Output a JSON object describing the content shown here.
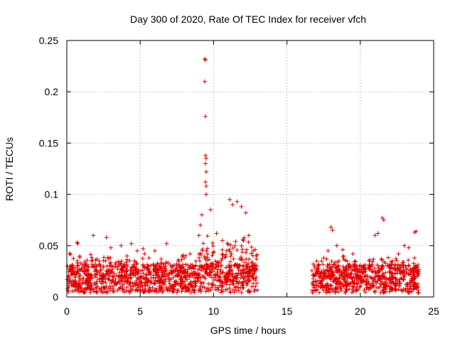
{
  "chart_data": {
    "type": "scatter",
    "title": "Day 300 of 2020, Rate Of TEC Index for receiver vfch",
    "xlabel": "GPS time / hours",
    "ylabel": "ROTI / TECUs",
    "xlim": [
      0,
      25
    ],
    "ylim": [
      0,
      0.25
    ],
    "xticks": [
      0,
      5,
      10,
      15,
      20,
      25
    ],
    "yticks": [
      0,
      0.05,
      0.1,
      0.15,
      0.2,
      0.25
    ],
    "xtick_labels": [
      "0",
      "5",
      "10",
      "15",
      "20",
      "25"
    ],
    "ytick_labels": [
      "0",
      "0.05",
      "0.1",
      "0.15",
      "0.2",
      "0.25"
    ],
    "grid": true,
    "marker": "+",
    "color": "#e00000",
    "series": [
      {
        "name": "ROTI",
        "points": [
          [
            0.2,
            0.03
          ],
          [
            0.5,
            0.022
          ],
          [
            0.7,
            0.053
          ],
          [
            0.75,
            0.052
          ],
          [
            1.0,
            0.028
          ],
          [
            1.4,
            0.018
          ],
          [
            1.8,
            0.06
          ],
          [
            2.2,
            0.035
          ],
          [
            2.7,
            0.058
          ],
          [
            3.0,
            0.048
          ],
          [
            3.3,
            0.03
          ],
          [
            3.7,
            0.05
          ],
          [
            4.1,
            0.04
          ],
          [
            4.4,
            0.052
          ],
          [
            4.8,
            0.045
          ],
          [
            5.2,
            0.047
          ],
          [
            5.6,
            0.038
          ],
          [
            6.0,
            0.045
          ],
          [
            6.4,
            0.033
          ],
          [
            6.8,
            0.052
          ],
          [
            7.2,
            0.03
          ],
          [
            7.6,
            0.036
          ],
          [
            8.0,
            0.038
          ],
          [
            8.4,
            0.042
          ],
          [
            8.8,
            0.035
          ],
          [
            9.0,
            0.06
          ],
          [
            9.1,
            0.07
          ],
          [
            9.2,
            0.08
          ],
          [
            9.4,
            0.232
          ],
          [
            9.45,
            0.231
          ],
          [
            9.4,
            0.21
          ],
          [
            9.45,
            0.176
          ],
          [
            9.45,
            0.138
          ],
          [
            9.5,
            0.135
          ],
          [
            9.45,
            0.13
          ],
          [
            9.5,
            0.122
          ],
          [
            9.45,
            0.112
          ],
          [
            9.5,
            0.108
          ],
          [
            9.5,
            0.1
          ],
          [
            9.8,
            0.085
          ],
          [
            10.2,
            0.062
          ],
          [
            10.6,
            0.055
          ],
          [
            10.9,
            0.045
          ],
          [
            11.1,
            0.095
          ],
          [
            11.3,
            0.09
          ],
          [
            11.6,
            0.093
          ],
          [
            11.9,
            0.088
          ],
          [
            12.2,
            0.082
          ],
          [
            12.4,
            0.06
          ],
          [
            12.7,
            0.045
          ],
          [
            12.9,
            0.04
          ],
          [
            16.8,
            0.032
          ],
          [
            17.1,
            0.025
          ],
          [
            17.5,
            0.038
          ],
          [
            17.8,
            0.045
          ],
          [
            18.0,
            0.068
          ],
          [
            18.1,
            0.065
          ],
          [
            18.4,
            0.05
          ],
          [
            18.8,
            0.046
          ],
          [
            19.1,
            0.035
          ],
          [
            19.5,
            0.042
          ],
          [
            19.8,
            0.028
          ],
          [
            20.2,
            0.03
          ],
          [
            20.6,
            0.035
          ],
          [
            21.0,
            0.06
          ],
          [
            21.2,
            0.062
          ],
          [
            21.5,
            0.077
          ],
          [
            21.6,
            0.075
          ],
          [
            21.9,
            0.03
          ],
          [
            22.2,
            0.035
          ],
          [
            22.6,
            0.042
          ],
          [
            23.0,
            0.05
          ],
          [
            23.3,
            0.048
          ],
          [
            23.7,
            0.063
          ],
          [
            23.8,
            0.064
          ]
        ]
      }
    ]
  }
}
